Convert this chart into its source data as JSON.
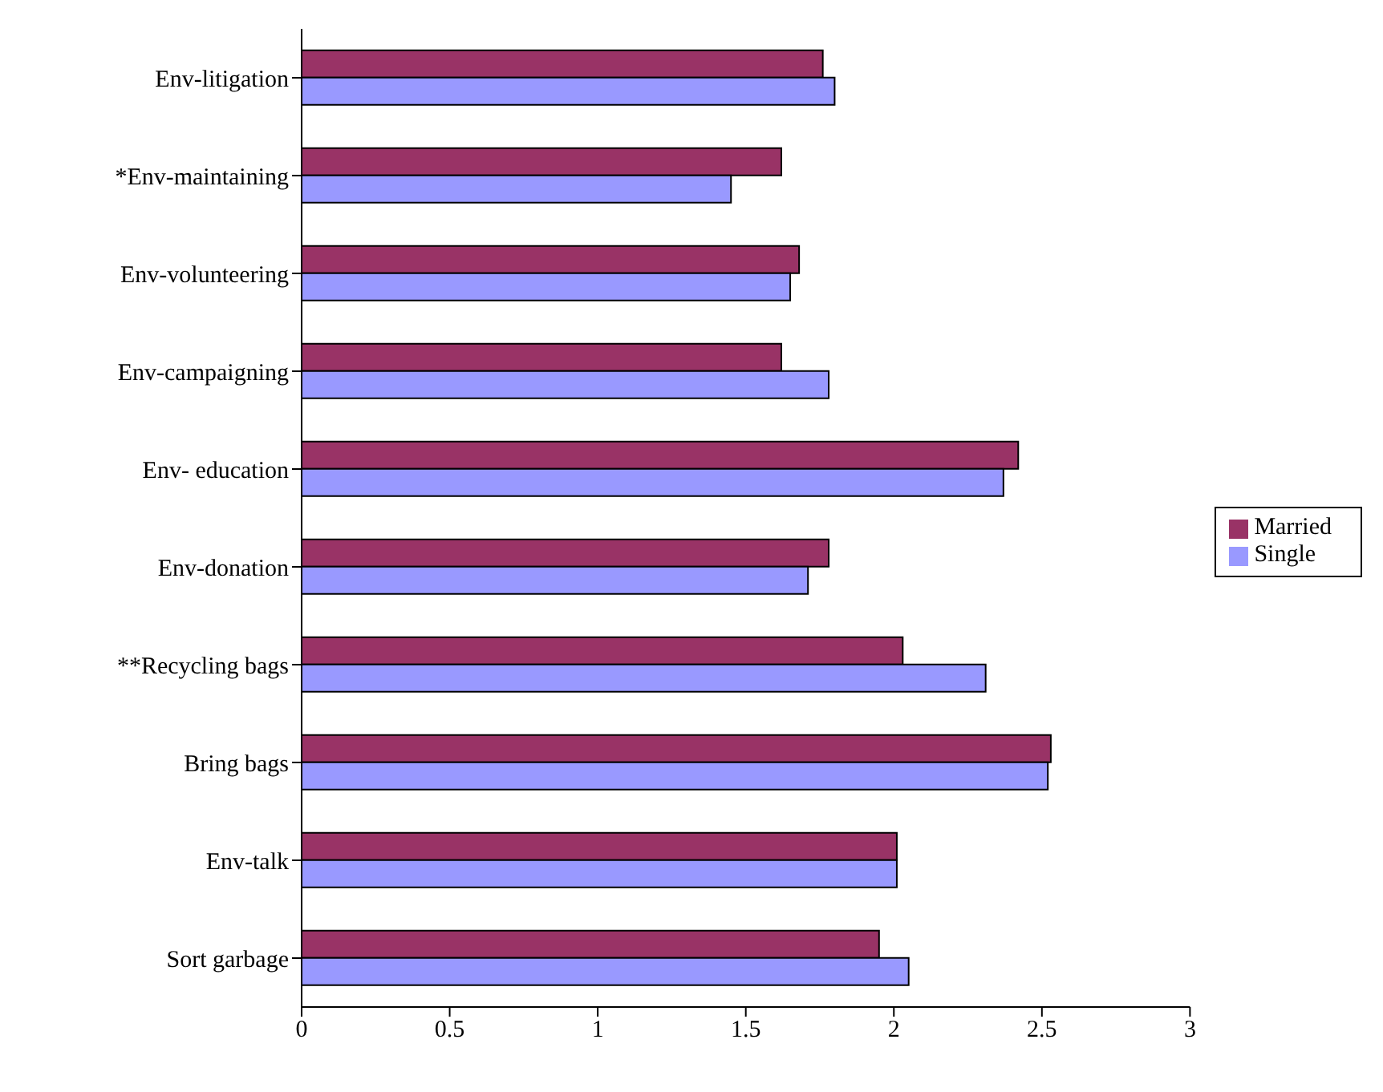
{
  "chart_data": {
    "type": "bar",
    "orientation": "horizontal",
    "categories": [
      "Env-litigation",
      "*Env-maintaining",
      "Env-volunteering",
      "Env-campaigning",
      "Env- education",
      "Env-donation",
      "**Recycling bags",
      "Bring bags",
      "Env-talk",
      "Sort garbage"
    ],
    "series": [
      {
        "name": "Married",
        "color": "#993366",
        "values": [
          1.76,
          1.62,
          1.68,
          1.62,
          2.42,
          1.78,
          2.03,
          2.53,
          2.01,
          1.95
        ]
      },
      {
        "name": "Single",
        "color": "#9999ff",
        "values": [
          1.8,
          1.45,
          1.65,
          1.78,
          2.37,
          1.71,
          2.31,
          2.52,
          2.01,
          2.05
        ]
      }
    ],
    "xlim": [
      0,
      3
    ],
    "xticks": [
      0,
      0.5,
      1,
      1.5,
      2,
      2.5,
      3
    ],
    "grid": false,
    "legend": "right"
  }
}
